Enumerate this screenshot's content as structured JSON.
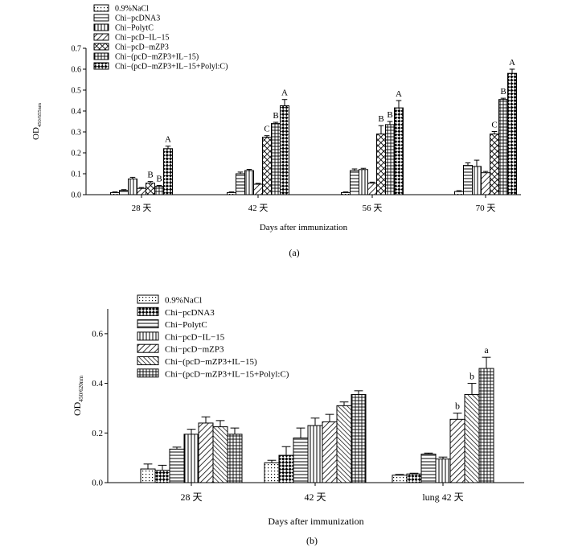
{
  "colors": {
    "ink": "#000000",
    "background": "#ffffff"
  },
  "chart_data": [
    {
      "type": "bar",
      "panel_label": "(a)",
      "title": "",
      "xlabel": "Days after immunization",
      "ylabel": "OD450/655nm",
      "ylabel_main": "OD",
      "ylabel_sub": "450/655nm",
      "ylim": [
        0,
        0.7
      ],
      "yticks": [
        "0.0",
        "0.1",
        "0.2",
        "0.3",
        "0.4",
        "0.5",
        "0.6",
        "0.7"
      ],
      "ytick_values": [
        0,
        0.1,
        0.2,
        0.3,
        0.4,
        0.5,
        0.6,
        0.7
      ],
      "legend_position": "top-left",
      "categories": [
        "28 天",
        "42 天",
        "56 天",
        "70 天"
      ],
      "series": [
        {
          "name": "0.9%NaCl",
          "pattern": "dots",
          "values": [
            0.01,
            0.01,
            0.01,
            0.015
          ],
          "errors": [
            0.003,
            0.003,
            0.003,
            0.004
          ]
        },
        {
          "name": "Chi−pcDNA3",
          "pattern": "hlines",
          "values": [
            0.02,
            0.1,
            0.115,
            0.14
          ],
          "errors": [
            0.004,
            0.008,
            0.008,
            0.012
          ]
        },
        {
          "name": "Chi−PolytC",
          "pattern": "vlines",
          "values": [
            0.075,
            0.115,
            0.12,
            0.135
          ],
          "errors": [
            0.008,
            0.006,
            0.006,
            0.03
          ]
        },
        {
          "name": "Chi−pcD−IL−15",
          "pattern": "diag",
          "values": [
            0.03,
            0.05,
            0.055,
            0.105
          ],
          "errors": [
            0.004,
            0.004,
            0.005,
            0.006
          ]
        },
        {
          "name": "Chi−pcD−mZP3",
          "pattern": "crosshatch",
          "values": [
            0.055,
            0.275,
            0.29,
            0.29
          ],
          "errors": [
            0.008,
            0.007,
            0.04,
            0.012
          ]
        },
        {
          "name": "Chi−(pcD−mZP3+IL−15)",
          "pattern": "grid",
          "values": [
            0.04,
            0.34,
            0.335,
            0.455
          ],
          "errors": [
            0.004,
            0.006,
            0.015,
            0.006
          ]
        },
        {
          "name": "Chi−(pcD−mZP3+IL−15+Polyl:C)",
          "pattern": "checker",
          "values": [
            0.22,
            0.425,
            0.415,
            0.58
          ],
          "errors": [
            0.012,
            0.03,
            0.035,
            0.02
          ]
        }
      ],
      "annotations": [
        {
          "text": "B",
          "category": 0,
          "series": 4
        },
        {
          "text": "B",
          "category": 0,
          "series": 5
        },
        {
          "text": "A",
          "category": 0,
          "series": 6
        },
        {
          "text": "C",
          "category": 1,
          "series": 4
        },
        {
          "text": "B",
          "category": 1,
          "series": 5
        },
        {
          "text": "A",
          "category": 1,
          "series": 6
        },
        {
          "text": "B",
          "category": 2,
          "series": 4
        },
        {
          "text": "B",
          "category": 2,
          "series": 5
        },
        {
          "text": "A",
          "category": 2,
          "series": 6
        },
        {
          "text": "C",
          "category": 3,
          "series": 4
        },
        {
          "text": "B",
          "category": 3,
          "series": 5
        },
        {
          "text": "A",
          "category": 3,
          "series": 6
        }
      ]
    },
    {
      "type": "bar",
      "panel_label": "(b)",
      "title": "",
      "xlabel": "Days after immunization",
      "ylabel": "OD450/620nm",
      "ylabel_main": "OD",
      "ylabel_sub": "450/620nm",
      "ylim": [
        0,
        0.7
      ],
      "yticks": [
        "0.0",
        "0.2",
        "0.4",
        "0.6"
      ],
      "ytick_values": [
        0,
        0.2,
        0.4,
        0.6
      ],
      "legend_position": "top-left",
      "categories": [
        "28 天",
        "42 天",
        "lung 42 天"
      ],
      "series": [
        {
          "name": "0.9%NaCl",
          "pattern": "dots",
          "values": [
            0.055,
            0.08,
            0.03
          ],
          "errors": [
            0.02,
            0.01,
            0.003
          ]
        },
        {
          "name": "Chi−pcDNA3",
          "pattern": "checker",
          "values": [
            0.05,
            0.11,
            0.035
          ],
          "errors": [
            0.02,
            0.035,
            0.003
          ]
        },
        {
          "name": "Chi−PolytC",
          "pattern": "hlines",
          "values": [
            0.135,
            0.18,
            0.115
          ],
          "errors": [
            0.008,
            0.04,
            0.004
          ]
        },
        {
          "name": "Chi−pcD−IL−15",
          "pattern": "vlines",
          "values": [
            0.195,
            0.23,
            0.095
          ],
          "errors": [
            0.02,
            0.03,
            0.008
          ]
        },
        {
          "name": "Chi−pcD−mZP3",
          "pattern": "diag",
          "values": [
            0.24,
            0.245,
            0.255
          ],
          "errors": [
            0.025,
            0.03,
            0.025
          ]
        },
        {
          "name": "Chi−(pcD−mZP3+IL−15)",
          "pattern": "diag2",
          "values": [
            0.225,
            0.31,
            0.355
          ],
          "errors": [
            0.025,
            0.015,
            0.045
          ]
        },
        {
          "name": "Chi−(pcD−mZP3+IL−15+Polyl:C)",
          "pattern": "grid",
          "values": [
            0.195,
            0.355,
            0.46
          ],
          "errors": [
            0.025,
            0.015,
            0.045
          ]
        }
      ],
      "annotations": [
        {
          "text": "b",
          "category": 2,
          "series": 4
        },
        {
          "text": "b",
          "category": 2,
          "series": 5
        },
        {
          "text": "a",
          "category": 2,
          "series": 6
        }
      ]
    }
  ]
}
